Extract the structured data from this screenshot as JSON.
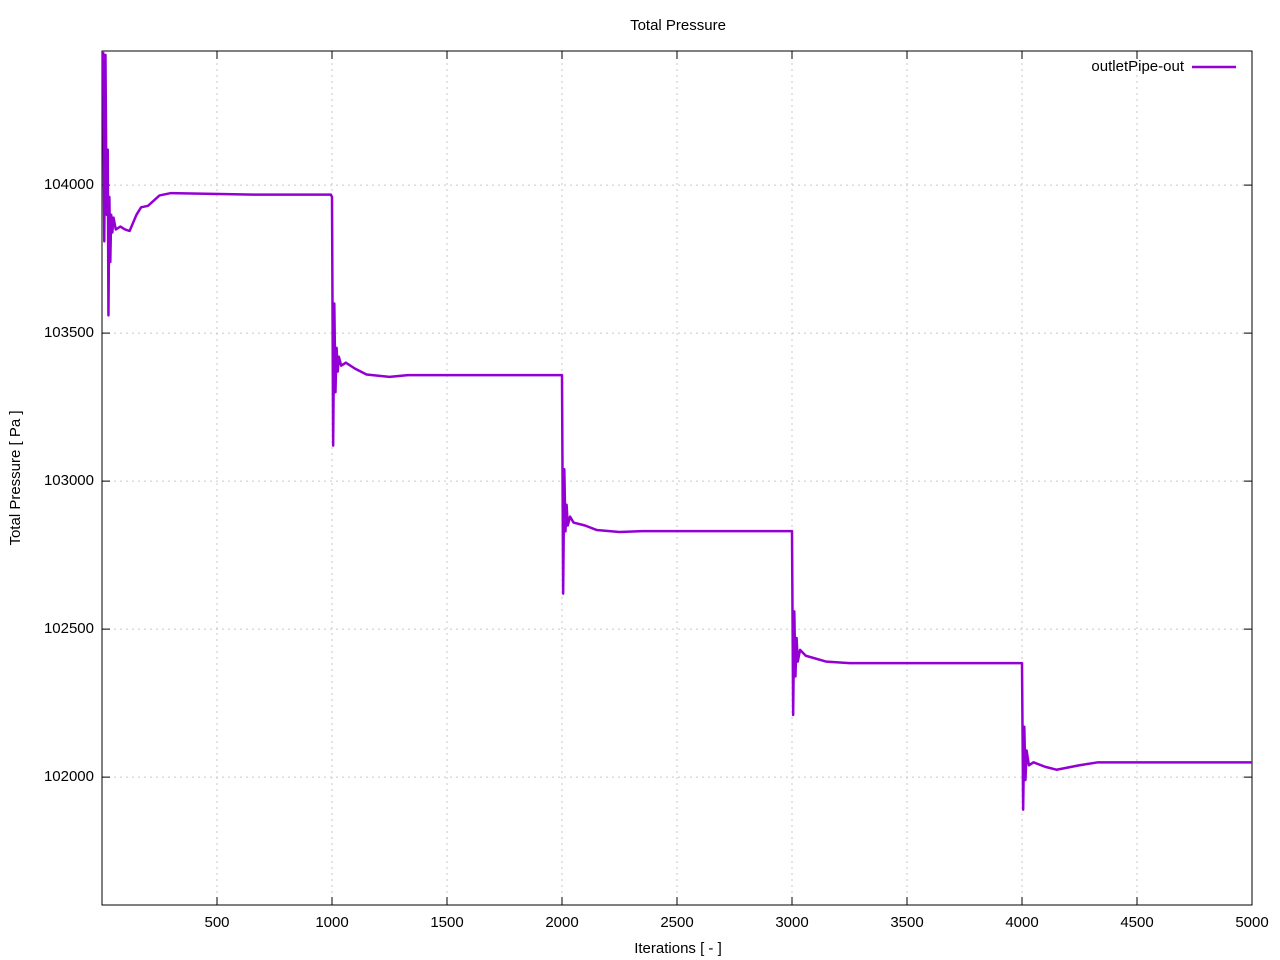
{
  "chart_data": {
    "type": "line",
    "title": "Total Pressure",
    "x_label": "Iterations [ - ]",
    "y_label": "Total Pressure [ Pa ]",
    "xlim": [
      0,
      5000
    ],
    "ylim": [
      101568,
      104453
    ],
    "xticks": [
      500,
      1000,
      1500,
      2000,
      2500,
      3000,
      3500,
      4000,
      4500,
      5000
    ],
    "yticks": [
      102000,
      102500,
      103000,
      103500,
      104000
    ],
    "grid": true,
    "legend": "top-right",
    "x": [
      5,
      10,
      15,
      20,
      25,
      28,
      32,
      36,
      40,
      45,
      50,
      60,
      80,
      100,
      120,
      150,
      170,
      200,
      250,
      300,
      660,
      995,
      1000,
      1005,
      1010,
      1015,
      1020,
      1025,
      1030,
      1040,
      1060,
      1100,
      1150,
      1250,
      1330,
      1995,
      2000,
      2005,
      2010,
      2015,
      2020,
      2025,
      2035,
      2050,
      2100,
      2150,
      2250,
      2350,
      2995,
      3000,
      3005,
      3010,
      3015,
      3020,
      3025,
      3035,
      3060,
      3150,
      3250,
      3995,
      4000,
      4005,
      4010,
      4015,
      4020,
      4030,
      4050,
      4100,
      4150,
      4250,
      4330,
      5000
    ],
    "series": [
      {
        "name": "outletPipe-out",
        "color": "#9400d3",
        "values": [
          104450,
          103810,
          104440,
          103900,
          104120,
          103560,
          103960,
          103740,
          103900,
          103840,
          103890,
          103850,
          103860,
          103850,
          103845,
          103900,
          103925,
          103930,
          103965,
          103973,
          103968,
          103968,
          103960,
          103120,
          103600,
          103300,
          103450,
          103370,
          103420,
          103390,
          103400,
          103380,
          103360,
          103352,
          103358,
          103358,
          103358,
          102620,
          103040,
          102830,
          102920,
          102850,
          102880,
          102860,
          102850,
          102835,
          102828,
          102831,
          102831,
          102831,
          102210,
          102560,
          102340,
          102470,
          102390,
          102430,
          102410,
          102390,
          102385,
          102385,
          102385,
          101890,
          102170,
          101990,
          102090,
          102040,
          102050,
          102035,
          102025,
          102040,
          102050,
          102050
        ]
      }
    ]
  }
}
